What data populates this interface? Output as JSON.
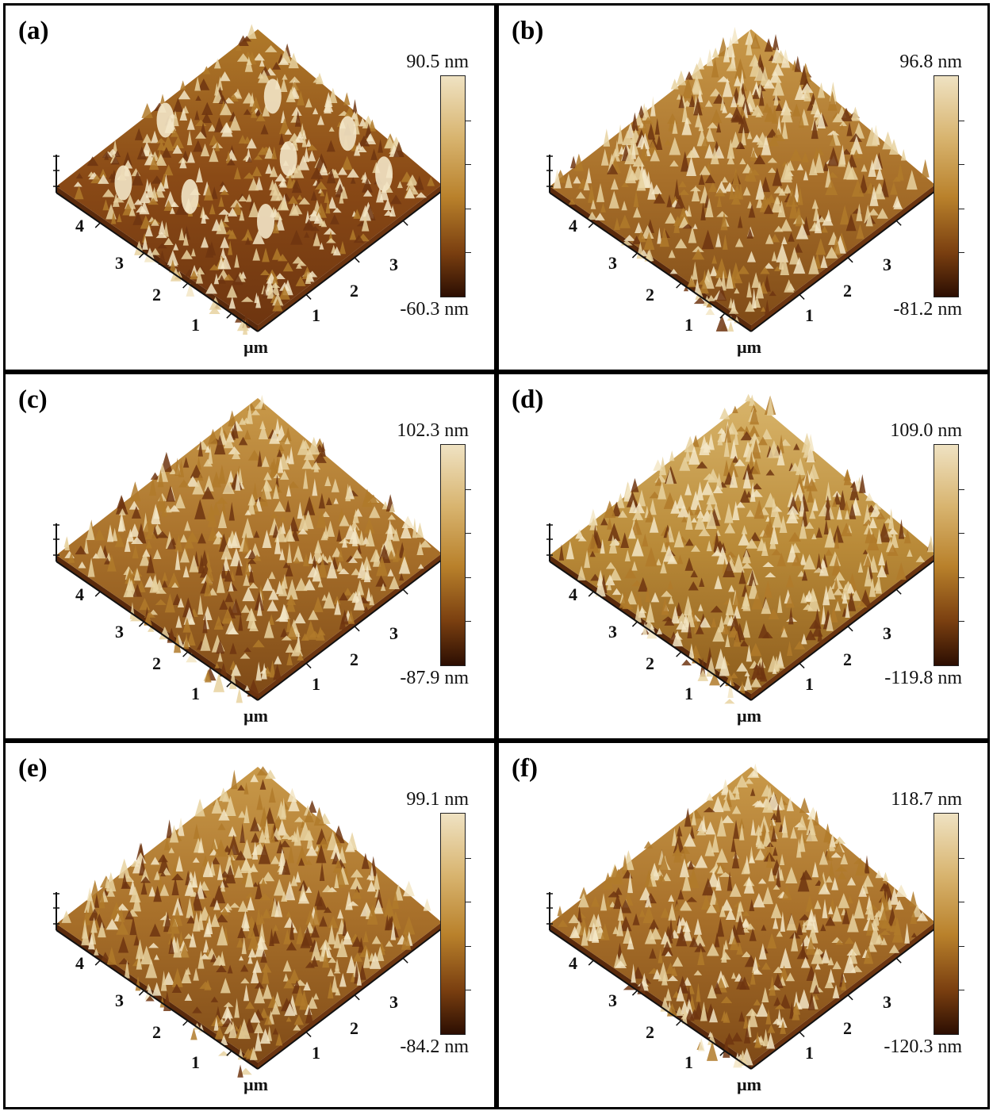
{
  "panels": [
    {
      "label": "(a)",
      "max": "90.5 nm",
      "min": "-60.3 nm",
      "left_ticks": [
        "4",
        "3",
        "2",
        "1"
      ],
      "right_ticks": [
        "1",
        "2",
        "3"
      ],
      "unit": "µm",
      "tone": 0
    },
    {
      "label": "(b)",
      "max": "96.8 nm",
      "min": "-81.2 nm",
      "left_ticks": [
        "4",
        "3",
        "2",
        "1"
      ],
      "right_ticks": [
        "1",
        "2",
        "3"
      ],
      "unit": "µm",
      "tone": 1
    },
    {
      "label": "(c)",
      "max": "102.3 nm",
      "min": "-87.9 nm",
      "left_ticks": [
        "4",
        "3",
        "2",
        "1"
      ],
      "right_ticks": [
        "1",
        "2",
        "3"
      ],
      "unit": "µm",
      "tone": 1
    },
    {
      "label": "(d)",
      "max": "109.0 nm",
      "min": "-119.8 nm",
      "left_ticks": [
        "4",
        "3",
        "2",
        "1"
      ],
      "right_ticks": [
        "1",
        "2",
        "3"
      ],
      "unit": "µm",
      "tone": 2
    },
    {
      "label": "(e)",
      "max": "99.1 nm",
      "min": "-84.2 nm",
      "left_ticks": [
        "4",
        "3",
        "2",
        "1"
      ],
      "right_ticks": [
        "1",
        "2",
        "3"
      ],
      "unit": "µm",
      "tone": 1
    },
    {
      "label": "(f)",
      "max": "118.7 nm",
      "min": "-120.3 nm",
      "left_ticks": [
        "4",
        "3",
        "2",
        "1"
      ],
      "right_ticks": [
        "1",
        "2",
        "3"
      ],
      "unit": "µm",
      "tone": 1
    }
  ],
  "colors": {
    "frame": "#000000",
    "surface_dark": "#6e3510",
    "surface_mid": "#b07a2a",
    "surface_light": "#e8d2a0",
    "peak_highlight": "#f3e6c6"
  }
}
